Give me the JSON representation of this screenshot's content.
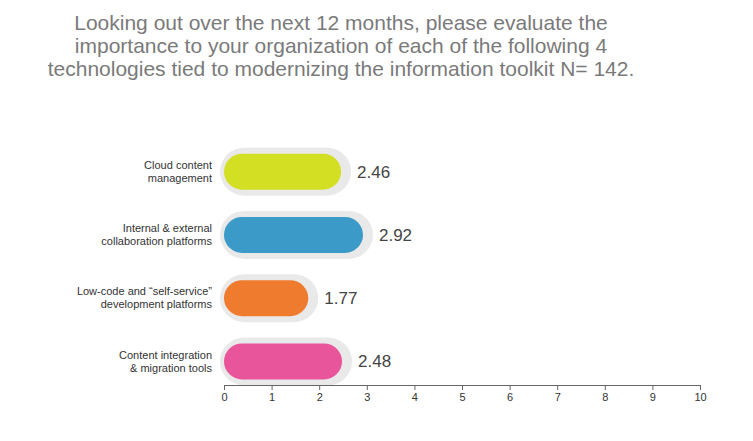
{
  "chart_data": {
    "type": "bar",
    "orientation": "horizontal",
    "title": "Looking out over the next 12 months, please evaluate the importance to your organization of each of the following 4 technologies tied to modernizing the information toolkit N= 142.",
    "categories": [
      "Cloud content management",
      "Internal & external collaboration platforms",
      "Low-code and “self-service” development platforms",
      "Content integration & migration tools"
    ],
    "values": [
      2.46,
      2.92,
      1.77,
      2.48
    ],
    "colors": [
      "#d3df22",
      "#3b9ac8",
      "#ef7b2f",
      "#e8559b"
    ],
    "xlim": [
      0,
      10
    ],
    "xticks": [
      0,
      1,
      2,
      3,
      4,
      5,
      6,
      7,
      8,
      9,
      10
    ],
    "data_labels": true,
    "grid": false
  }
}
